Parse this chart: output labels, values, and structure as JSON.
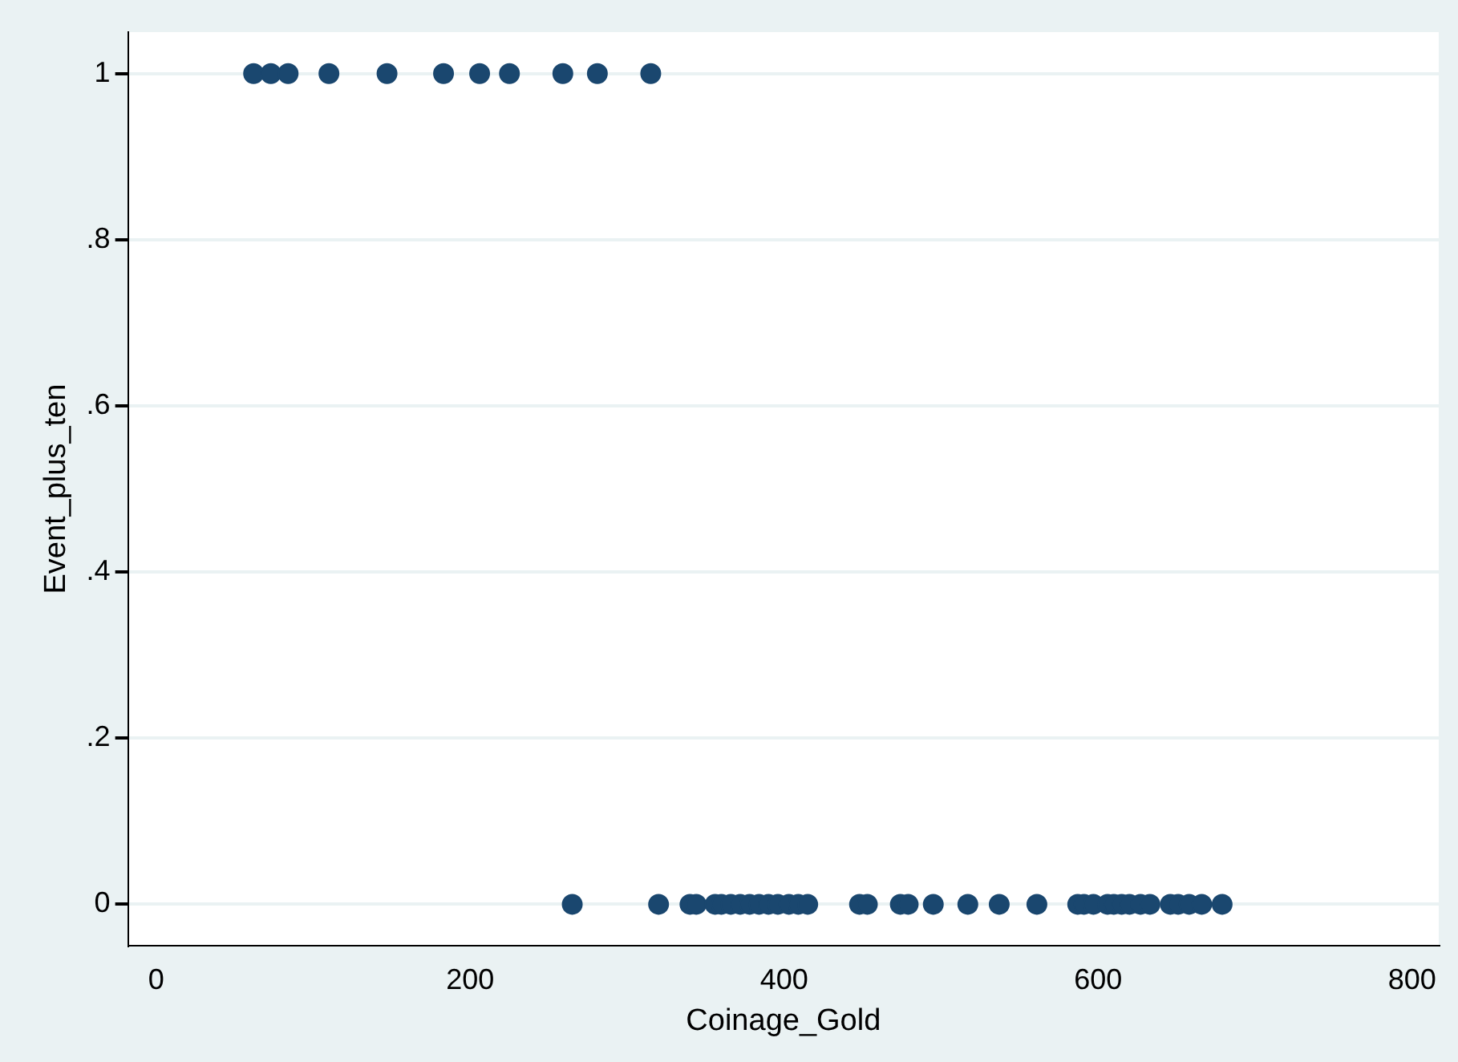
{
  "chart_data": {
    "type": "scatter",
    "xlabel": "Coinage_Gold",
    "ylabel": "Event_plus_ten",
    "x": [
      62,
      73,
      84,
      110,
      147,
      183,
      206,
      225,
      259,
      281,
      315,
      265,
      320,
      340,
      344,
      356,
      360,
      366,
      372,
      378,
      384,
      390,
      396,
      403,
      409,
      415,
      448,
      453,
      474,
      479,
      495,
      517,
      537,
      561,
      587,
      591,
      597,
      606,
      610,
      615,
      620,
      627,
      633,
      646,
      651,
      658,
      666,
      679
    ],
    "values": [
      1,
      1,
      1,
      1,
      1,
      1,
      1,
      1,
      1,
      1,
      1,
      0,
      0,
      0,
      0,
      0,
      0,
      0,
      0,
      0,
      0,
      0,
      0,
      0,
      0,
      0,
      0,
      0,
      0,
      0,
      0,
      0,
      0,
      0,
      0,
      0,
      0,
      0,
      0,
      0,
      0,
      0,
      0,
      0,
      0,
      0,
      0,
      0
    ],
    "color": "#1a476f",
    "marker": "circle",
    "xlim": [
      -18,
      817
    ],
    "xticks": [
      0,
      200,
      400,
      600,
      800
    ],
    "ylim": [
      -0.05,
      1.05
    ],
    "yticks": [
      {
        "value": 0,
        "label": "0"
      },
      {
        "value": 0.2,
        "label": ".2"
      },
      {
        "value": 0.4,
        "label": ".4"
      },
      {
        "value": 0.6,
        "label": ".6"
      },
      {
        "value": 0.8,
        "label": ".8"
      },
      {
        "value": 1,
        "label": "1"
      }
    ],
    "grid": "y",
    "legend": false
  }
}
